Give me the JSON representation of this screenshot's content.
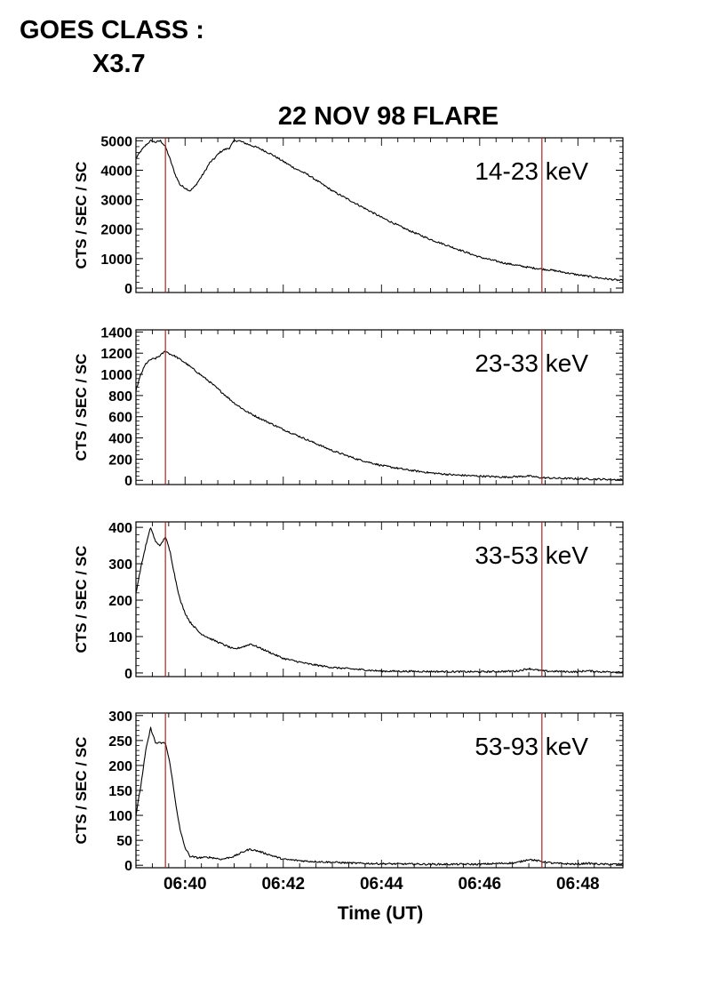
{
  "goes_class": {
    "label": "GOES CLASS :",
    "value": "X3.7"
  },
  "chart_data": {
    "type": "line",
    "title": "22 NOV 98 FLARE",
    "xlabel": "Time (UT)",
    "xlim": [
      "06:39:00",
      "06:48:55"
    ],
    "x_ticks": [
      "06:40",
      "06:42",
      "06:44",
      "06:46",
      "06:48"
    ],
    "marker_lines": {
      "color": "#b22222",
      "times": [
        "06:39:36",
        "06:47:16"
      ]
    },
    "grid": false,
    "panels": [
      {
        "label": "14-23 keV",
        "ylabel": "CTS / SEC / SC",
        "ylim": [
          -150,
          5100
        ],
        "yticks": [
          0,
          1000,
          2000,
          3000,
          4000,
          5000
        ],
        "x": [
          "06:39:00",
          "06:39:06",
          "06:39:12",
          "06:39:18",
          "06:39:24",
          "06:39:30",
          "06:39:36",
          "06:39:42",
          "06:39:48",
          "06:39:54",
          "06:40:00",
          "06:40:06",
          "06:40:12",
          "06:40:18",
          "06:40:24",
          "06:40:30",
          "06:40:36",
          "06:40:42",
          "06:40:48",
          "06:40:54",
          "06:41:00",
          "06:41:06",
          "06:41:15",
          "06:41:30",
          "06:41:45",
          "06:42:00",
          "06:42:15",
          "06:42:30",
          "06:43:00",
          "06:43:30",
          "06:44:00",
          "06:44:30",
          "06:45:00",
          "06:45:30",
          "06:46:00",
          "06:46:30",
          "06:47:00",
          "06:47:15",
          "06:47:30",
          "06:48:00",
          "06:48:30",
          "06:48:55"
        ],
        "values": [
          4400,
          4650,
          4850,
          5000,
          4950,
          5000,
          4800,
          4350,
          3850,
          3500,
          3400,
          3300,
          3450,
          3700,
          3950,
          4250,
          4400,
          4600,
          4700,
          4750,
          5000,
          5000,
          4900,
          4750,
          4550,
          4300,
          4050,
          3850,
          3300,
          2850,
          2400,
          2000,
          1650,
          1350,
          1050,
          850,
          700,
          650,
          600,
          450,
          330,
          250
        ]
      },
      {
        "label": "23-33 keV",
        "ylabel": "CTS / SEC / SC",
        "ylim": [
          -40,
          1420
        ],
        "yticks": [
          0,
          200,
          400,
          600,
          800,
          1000,
          1200,
          1400
        ],
        "x": [
          "06:39:00",
          "06:39:06",
          "06:39:12",
          "06:39:18",
          "06:39:24",
          "06:39:30",
          "06:39:36",
          "06:39:42",
          "06:39:48",
          "06:40:00",
          "06:40:15",
          "06:40:30",
          "06:40:45",
          "06:41:00",
          "06:41:15",
          "06:41:30",
          "06:42:00",
          "06:42:30",
          "06:43:00",
          "06:43:30",
          "06:44:00",
          "06:44:30",
          "06:45:00",
          "06:45:30",
          "06:46:00",
          "06:46:30",
          "06:47:00",
          "06:47:15",
          "06:47:30",
          "06:48:00",
          "06:48:30",
          "06:48:55"
        ],
        "values": [
          850,
          1000,
          1100,
          1140,
          1150,
          1180,
          1220,
          1190,
          1170,
          1110,
          1020,
          930,
          830,
          730,
          650,
          590,
          480,
          380,
          280,
          200,
          140,
          100,
          70,
          50,
          40,
          30,
          40,
          25,
          20,
          15,
          10,
          5
        ]
      },
      {
        "label": "33-53 keV",
        "ylabel": "CTS / SEC / SC",
        "ylim": [
          -10,
          415
        ],
        "yticks": [
          0,
          100,
          200,
          300,
          400
        ],
        "x": [
          "06:39:00",
          "06:39:06",
          "06:39:12",
          "06:39:18",
          "06:39:24",
          "06:39:30",
          "06:39:36",
          "06:39:42",
          "06:39:48",
          "06:39:54",
          "06:40:00",
          "06:40:06",
          "06:40:12",
          "06:40:18",
          "06:40:30",
          "06:40:45",
          "06:41:00",
          "06:41:15",
          "06:41:20",
          "06:41:30",
          "06:41:45",
          "06:42:00",
          "06:42:30",
          "06:43:00",
          "06:43:30",
          "06:44:00",
          "06:45:00",
          "06:46:00",
          "06:46:45",
          "06:47:00",
          "06:47:10",
          "06:47:20",
          "06:47:40",
          "06:48:00",
          "06:48:10",
          "06:48:30",
          "06:48:55"
        ],
        "values": [
          220,
          290,
          350,
          400,
          360,
          350,
          375,
          330,
          260,
          200,
          165,
          140,
          125,
          110,
          95,
          80,
          65,
          75,
          80,
          70,
          55,
          40,
          25,
          15,
          10,
          5,
          4,
          3,
          5,
          12,
          8,
          5,
          4,
          3,
          6,
          3,
          3
        ]
      },
      {
        "label": "53-93 keV",
        "ylabel": "CTS / SEC / SC",
        "ylim": [
          -5,
          305
        ],
        "yticks": [
          0,
          50,
          100,
          150,
          200,
          250,
          300
        ],
        "x": [
          "06:39:00",
          "06:39:06",
          "06:39:12",
          "06:39:18",
          "06:39:24",
          "06:39:30",
          "06:39:36",
          "06:39:42",
          "06:39:48",
          "06:39:54",
          "06:40:00",
          "06:40:06",
          "06:40:15",
          "06:40:30",
          "06:40:45",
          "06:41:00",
          "06:41:15",
          "06:41:20",
          "06:41:30",
          "06:41:45",
          "06:42:00",
          "06:42:30",
          "06:43:00",
          "06:43:30",
          "06:44:00",
          "06:45:00",
          "06:46:00",
          "06:46:45",
          "06:47:00",
          "06:47:10",
          "06:47:30",
          "06:48:00",
          "06:48:10",
          "06:48:30",
          "06:48:55"
        ],
        "values": [
          100,
          160,
          230,
          275,
          245,
          245,
          245,
          200,
          130,
          70,
          35,
          18,
          15,
          16,
          12,
          18,
          30,
          32,
          28,
          20,
          12,
          8,
          6,
          4,
          3,
          2,
          2,
          5,
          12,
          9,
          4,
          2,
          4,
          2,
          2
        ]
      }
    ]
  }
}
